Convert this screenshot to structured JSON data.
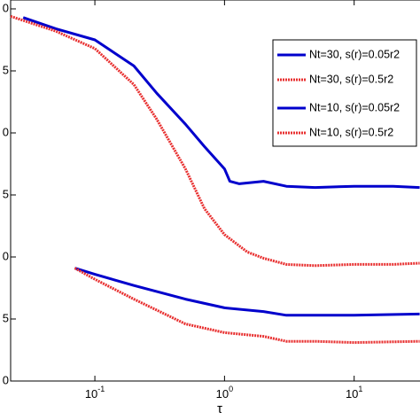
{
  "chart_data": {
    "type": "line",
    "xlabel": "τ",
    "xlog": true,
    "xlim": [
      0.0224,
      32.2
    ],
    "ylim": [
      0,
      30
    ],
    "xticks": [
      {
        "value": 0.1,
        "label": "10",
        "exponent": "-1"
      },
      {
        "value": 1,
        "label": "10",
        "exponent": "0"
      },
      {
        "value": 10,
        "label": "10",
        "exponent": "1"
      }
    ],
    "yticks": [
      {
        "value": 0,
        "label": "0"
      },
      5,
      {
        "value": 10,
        "label": "0"
      },
      {
        "value": 15,
        "label": "5"
      },
      {
        "value": 20,
        "label": "0"
      },
      {
        "value": 25,
        "label": "5"
      },
      {
        "value": 30,
        "label": "0"
      }
    ],
    "legend": "upper right",
    "series": [
      {
        "name": "Nt=30, s(r)=0.05r2",
        "color": "#0000cc",
        "style": "solid",
        "x": [
          0.028,
          0.05,
          0.1,
          0.2,
          0.3,
          0.5,
          0.7,
          1.0,
          1.1,
          1.3,
          2,
          3,
          5,
          10,
          20,
          32
        ],
        "values": [
          29.3,
          28.4,
          27.5,
          25.4,
          23.2,
          20.7,
          18.9,
          17.1,
          16.1,
          15.9,
          16.1,
          15.7,
          15.6,
          15.7,
          15.7,
          15.6
        ]
      },
      {
        "name": "Nt=30, s(r)=0.5r2",
        "color": "#e83030",
        "style": "dotted",
        "x": [
          0.0224,
          0.05,
          0.1,
          0.2,
          0.3,
          0.5,
          0.7,
          1.0,
          1.5,
          2,
          3,
          5,
          10,
          20,
          32
        ],
        "values": [
          29.4,
          28.2,
          26.8,
          23.9,
          21.1,
          17.1,
          13.9,
          11.8,
          10.4,
          9.9,
          9.4,
          9.3,
          9.4,
          9.4,
          9.5
        ]
      },
      {
        "name": "Nt=10, s(r)=0.05r2",
        "color": "#0000cc",
        "style": "solid",
        "x": [
          0.07,
          0.1,
          0.2,
          0.5,
          1,
          2,
          3,
          5,
          10,
          32
        ],
        "values": [
          9.1,
          8.6,
          7.7,
          6.6,
          5.9,
          5.6,
          5.3,
          5.3,
          5.3,
          5.4
        ]
      },
      {
        "name": "Nt=10, s(r)=0.5r2",
        "color": "#e83030",
        "style": "dotted",
        "x": [
          0.07,
          0.1,
          0.2,
          0.5,
          1,
          2,
          3,
          5,
          10,
          32
        ],
        "values": [
          9.1,
          8.2,
          6.6,
          4.6,
          3.9,
          3.6,
          3.2,
          3.2,
          3.1,
          3.2
        ]
      }
    ]
  }
}
